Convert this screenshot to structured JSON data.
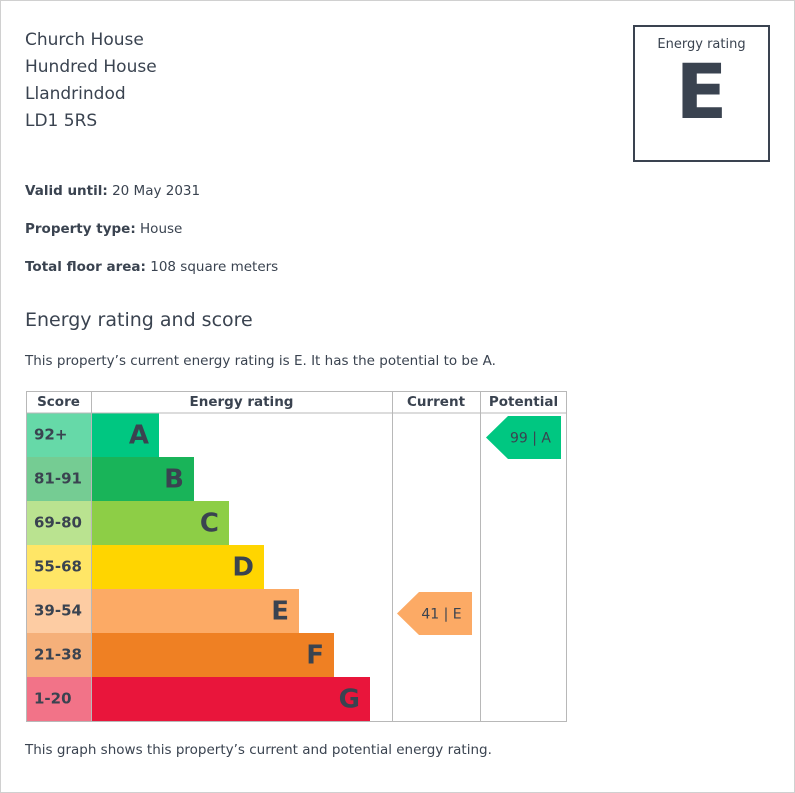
{
  "address": [
    "Church House",
    "Hundred House",
    "Llandrindod",
    "LD1 5RS"
  ],
  "rating_box": {
    "label": "Energy rating",
    "value": "E"
  },
  "details": [
    {
      "label": "Valid until:",
      "value": "20 May 2031"
    },
    {
      "label": "Property type:",
      "value": "House"
    },
    {
      "label": "Total floor area:",
      "value": "108 square meters"
    }
  ],
  "section": {
    "title": "Energy rating and score",
    "intro": "This property’s current energy rating is E. It has the potential to be A."
  },
  "table": {
    "headers": [
      "Score",
      "Energy rating",
      "Current",
      "Potential"
    ],
    "bands": [
      {
        "score": "92+",
        "letter": "A"
      },
      {
        "score": "81-91",
        "letter": "B"
      },
      {
        "score": "69-80",
        "letter": "C"
      },
      {
        "score": "55-68",
        "letter": "D"
      },
      {
        "score": "39-54",
        "letter": "E"
      },
      {
        "score": "21-38",
        "letter": "F"
      },
      {
        "score": "1-20",
        "letter": "G"
      }
    ],
    "current": "41 | E",
    "potential": "99 | A"
  },
  "footer": "This graph shows this property’s current and potential energy rating."
}
